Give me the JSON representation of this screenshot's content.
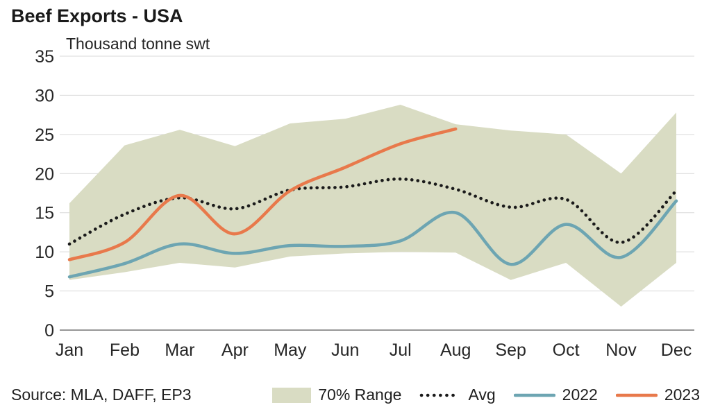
{
  "chart_data": {
    "type": "line",
    "title": "Beef Exports - USA",
    "subtitle": "Thousand tonne swt",
    "source": "Source: MLA, DAFF, EP3",
    "categories": [
      "Jan",
      "Feb",
      "Mar",
      "Apr",
      "May",
      "Jun",
      "Jul",
      "Aug",
      "Sep",
      "Oct",
      "Nov",
      "Dec"
    ],
    "ylim": [
      0,
      35
    ],
    "yticks": [
      0,
      5,
      10,
      15,
      20,
      25,
      30,
      35
    ],
    "grid": "horizontal",
    "legend_position": "bottom",
    "band": {
      "name": "70% Range",
      "upper": [
        16.2,
        23.6,
        25.6,
        23.5,
        26.4,
        27.0,
        28.8,
        26.3,
        25.5,
        25.0,
        20.0,
        27.8
      ],
      "lower": [
        6.4,
        7.4,
        8.6,
        8.0,
        9.4,
        9.8,
        10.0,
        9.9,
        6.4,
        8.6,
        3.0,
        8.6
      ]
    },
    "series": [
      {
        "name": "Avg",
        "style": "dotted",
        "color": "#1a1a1a",
        "values": [
          11.0,
          14.8,
          16.9,
          15.5,
          17.9,
          18.3,
          19.3,
          18.0,
          15.7,
          16.7,
          11.2,
          17.8
        ]
      },
      {
        "name": "2022",
        "style": "solid",
        "color": "#6da5b2",
        "values": [
          6.8,
          8.5,
          11.0,
          9.8,
          10.8,
          10.7,
          11.4,
          15.0,
          8.4,
          13.5,
          9.3,
          16.5
        ]
      },
      {
        "name": "2023",
        "style": "solid",
        "color": "#e8794b",
        "values": [
          9.0,
          11.2,
          17.2,
          12.3,
          17.8,
          20.8,
          23.8,
          25.7
        ]
      }
    ],
    "colors": {
      "band": "#d9dcc3",
      "grid": "#d9d9d9",
      "axis": "#737373",
      "text": "#262626"
    }
  }
}
